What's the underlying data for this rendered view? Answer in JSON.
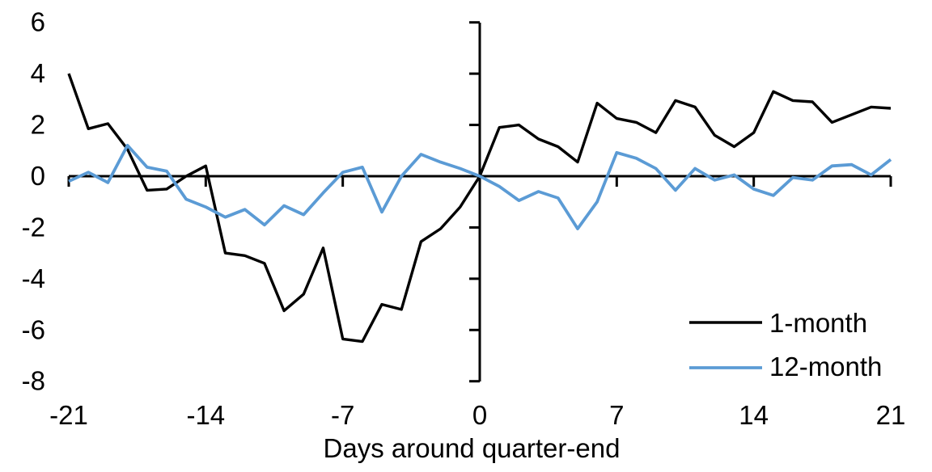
{
  "chart_data": {
    "type": "line",
    "title": "",
    "xlabel": "Days around quarter-end",
    "ylabel": "",
    "grid": false,
    "legend_position": "inside-bottom-right",
    "x_axis": {
      "min": -21,
      "max": 21,
      "ticks": [
        -21,
        -14,
        -7,
        0,
        7,
        14,
        21
      ]
    },
    "y_axis": {
      "min": -8,
      "max": 6,
      "ticks": [
        6,
        4,
        2,
        0,
        -2,
        -4,
        -6,
        -8
      ]
    },
    "x": [
      -21,
      -20,
      -19,
      -18,
      -17,
      -16,
      -15,
      -14,
      -13,
      -12,
      -11,
      -10,
      -9,
      -8,
      -7,
      -6,
      -5,
      -4,
      -3,
      -2,
      -1,
      0,
      1,
      2,
      3,
      4,
      5,
      6,
      7,
      8,
      9,
      10,
      11,
      12,
      13,
      14,
      15,
      16,
      17,
      18,
      19,
      20,
      21
    ],
    "series": [
      {
        "name": "1-month",
        "color": "#000000",
        "values": [
          4.0,
          1.85,
          2.05,
          1.05,
          -0.55,
          -0.5,
          0.0,
          0.4,
          -3.0,
          -3.1,
          -3.4,
          -5.25,
          -4.6,
          -2.8,
          -6.35,
          -6.45,
          -5.0,
          -5.2,
          -2.55,
          -2.05,
          -1.2,
          0.0,
          1.9,
          2.0,
          1.45,
          1.15,
          0.55,
          2.85,
          2.25,
          2.1,
          1.7,
          2.95,
          2.7,
          1.6,
          1.15,
          1.7,
          3.3,
          2.95,
          2.9,
          2.1,
          2.4,
          2.7,
          2.65
        ]
      },
      {
        "name": "12-month",
        "color": "#5B9BD5",
        "values": [
          -0.2,
          0.15,
          -0.25,
          1.2,
          0.35,
          0.2,
          -0.9,
          -1.2,
          -1.6,
          -1.3,
          -1.9,
          -1.15,
          -1.5,
          -0.65,
          0.15,
          0.35,
          -1.4,
          0.0,
          0.85,
          0.55,
          0.3,
          0.0,
          -0.4,
          -0.95,
          -0.6,
          -0.85,
          -2.05,
          -1.0,
          0.92,
          0.7,
          0.3,
          -0.55,
          0.3,
          -0.15,
          0.05,
          -0.5,
          -0.75,
          -0.05,
          -0.15,
          0.4,
          0.45,
          0.05,
          0.65
        ]
      }
    ]
  }
}
